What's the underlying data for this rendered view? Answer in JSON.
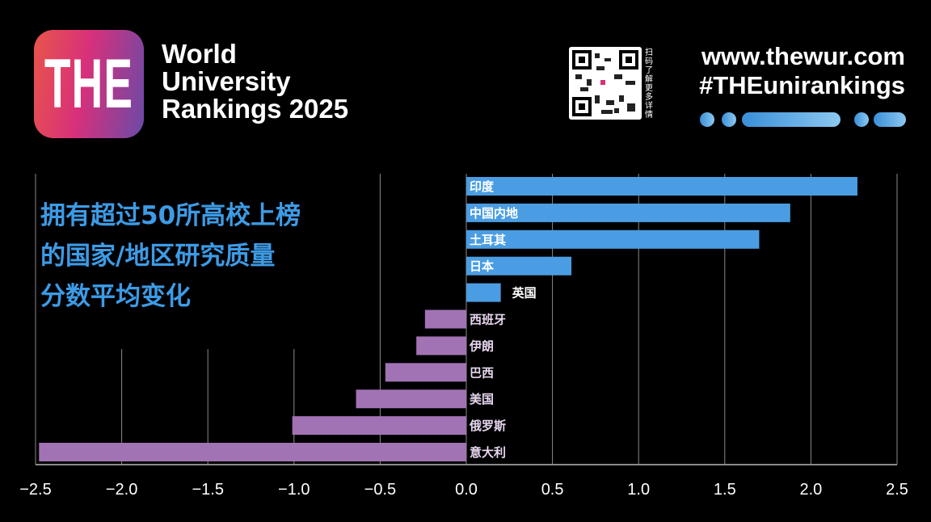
{
  "header": {
    "logo_text": "THE",
    "brand_lines": [
      "World",
      "University",
      "Rankings 2025"
    ],
    "qr_caption": "扫码了解更多详情",
    "url": "www.thewur.com",
    "hashtag": "#THEunirankings"
  },
  "colors": {
    "positive": "#4a9de2",
    "negative": "#a273b4",
    "title": "#3d9be6",
    "grid": "#8a8a8a"
  },
  "chart_data": {
    "type": "bar",
    "orientation": "horizontal",
    "title_lines": [
      "拥有超过50所高校上榜",
      "的国家/地区研究质量",
      "分数平均变化"
    ],
    "categories": [
      "印度",
      "中国内地",
      "土耳其",
      "日本",
      "英国",
      "西班牙",
      "伊朗",
      "巴西",
      "美国",
      "俄罗斯",
      "意大利"
    ],
    "values": [
      2.27,
      1.88,
      1.7,
      0.61,
      0.2,
      -0.24,
      -0.29,
      -0.47,
      -0.64,
      -1.01,
      -2.48
    ],
    "xlim": [
      -2.5,
      2.5
    ],
    "xticks": [
      "−2.5",
      "−2.0",
      "−1.5",
      "−1.0",
      "−0.5",
      "0.0",
      "0.5",
      "1.0",
      "1.5",
      "2.0",
      "2.5"
    ],
    "grid": true,
    "xlabel": "",
    "ylabel": ""
  }
}
